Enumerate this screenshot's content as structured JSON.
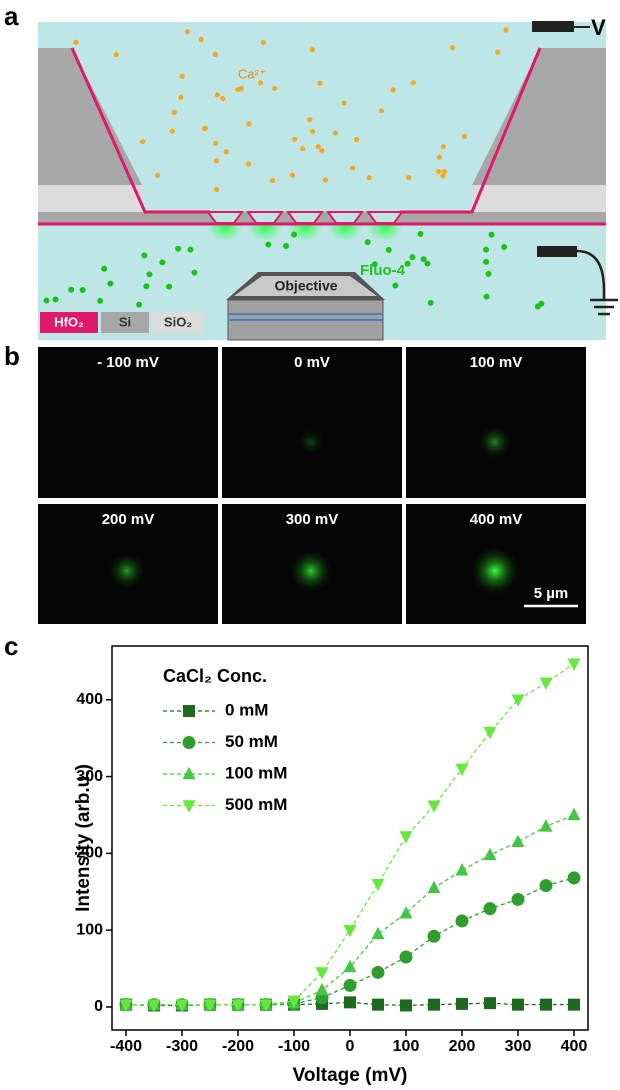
{
  "panels": {
    "a": "a",
    "b": "b",
    "c": "c"
  },
  "diagram": {
    "voltage": "V",
    "ion": "Ca²⁺",
    "dye": "Fluo-4",
    "objective": "Objective",
    "materials": [
      "HfO₂",
      "Si",
      "SiO₂"
    ]
  },
  "images": {
    "labels": [
      "- 100 mV",
      "0 mV",
      "100 mV",
      "200 mV",
      "300 mV",
      "400 mV"
    ],
    "scale_bar": "5 µm"
  },
  "chart_data": {
    "type": "line",
    "x_label": "Voltage (mV)",
    "y_label": "Intensity (arb.u.)",
    "legend_title": "CaCl₂ Conc.",
    "x": [
      -400,
      -350,
      -300,
      -250,
      -200,
      -150,
      -100,
      -50,
      0,
      50,
      100,
      150,
      200,
      250,
      300,
      350,
      400
    ],
    "xlim": [
      -425,
      425
    ],
    "xticks": [
      -400,
      -300,
      -200,
      -100,
      0,
      100,
      200,
      300,
      400
    ],
    "ylim": [
      -30,
      470
    ],
    "yticks": [
      0,
      100,
      200,
      300,
      400
    ],
    "series": [
      {
        "name": "0 mM",
        "color": "#1c6b1c",
        "marker": "square",
        "values": [
          3,
          2,
          2,
          3,
          3,
          3,
          3,
          4,
          6,
          3,
          2,
          3,
          4,
          5,
          3,
          3,
          3
        ]
      },
      {
        "name": "50 mM",
        "color": "#2f9e2f",
        "marker": "circle",
        "values": [
          3,
          3,
          3,
          3,
          3,
          3,
          4,
          12,
          28,
          45,
          65,
          92,
          112,
          128,
          140,
          158,
          168
        ]
      },
      {
        "name": "100 mM",
        "color": "#45c545",
        "marker": "triangle",
        "values": [
          3,
          3,
          3,
          3,
          3,
          3,
          5,
          22,
          52,
          95,
          122,
          155,
          178,
          198,
          215,
          235,
          250
        ]
      },
      {
        "name": "500 mM",
        "color": "#66e83e",
        "marker": "triangle-down",
        "values": [
          3,
          3,
          3,
          3,
          3,
          3,
          8,
          45,
          100,
          160,
          222,
          262,
          310,
          358,
          400,
          422,
          447
        ]
      }
    ]
  }
}
